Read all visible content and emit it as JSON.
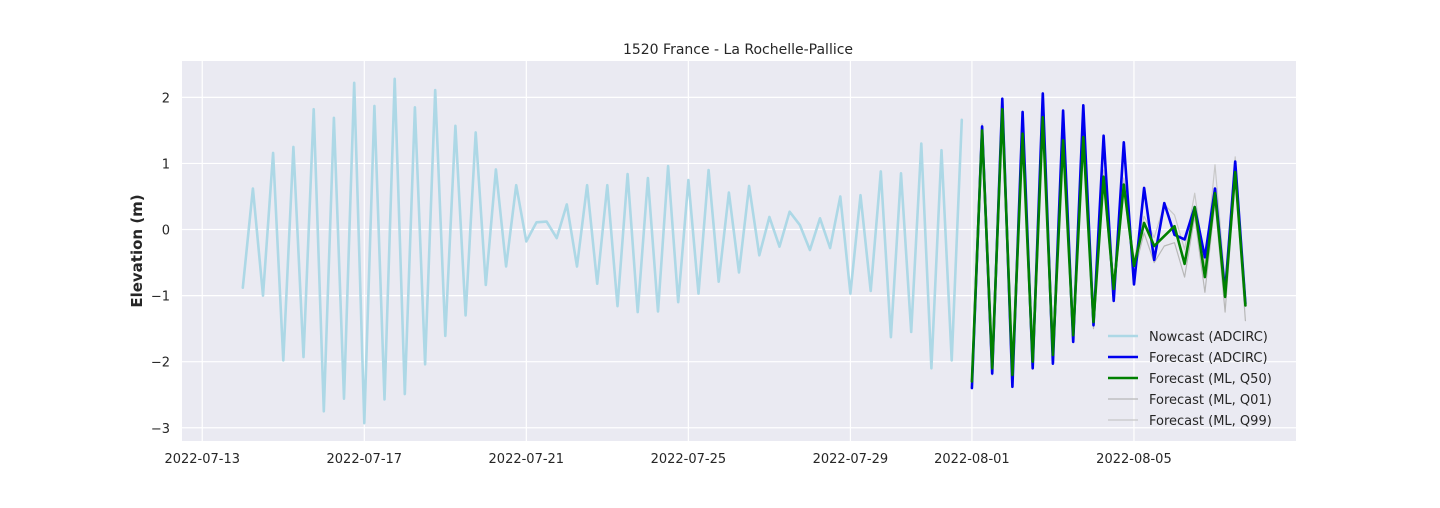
{
  "chart_data": {
    "type": "line",
    "title": "1520 France - La Rochelle-Pallice",
    "xlabel": "",
    "ylabel": "Elevation (m)",
    "xlim": [
      "2022-07-12T12:00",
      "2022-08-09T00:00"
    ],
    "ylim": [
      -3.2,
      2.55
    ],
    "x_ticks": [
      "2022-07-13",
      "2022-07-17",
      "2022-07-21",
      "2022-07-25",
      "2022-07-29",
      "2022-08-01",
      "2022-08-05"
    ],
    "y_ticks": [
      2,
      1,
      0,
      -1,
      -2,
      -3
    ],
    "y_tick_labels": [
      "2",
      "1",
      "0",
      "−1",
      "−2",
      "−3"
    ],
    "grid": true,
    "background_color": "#eaeaf2",
    "legend_placement": "lower-right",
    "series": [
      {
        "name": "Nowcast (ADCIRC)",
        "color": "#add8e6",
        "width": 2.6,
        "x": [
          "2022-07-14T00:00",
          "2022-07-14T06:00",
          "2022-07-14T12:00",
          "2022-07-14T18:00",
          "2022-07-15T00:00",
          "2022-07-15T06:00",
          "2022-07-15T12:00",
          "2022-07-15T18:00",
          "2022-07-16T00:00",
          "2022-07-16T06:00",
          "2022-07-16T12:00",
          "2022-07-16T18:00",
          "2022-07-17T00:00",
          "2022-07-17T06:00",
          "2022-07-17T12:00",
          "2022-07-17T18:00",
          "2022-07-18T00:00",
          "2022-07-18T06:00",
          "2022-07-18T12:00",
          "2022-07-18T18:00",
          "2022-07-19T00:00",
          "2022-07-19T06:00",
          "2022-07-19T12:00",
          "2022-07-19T18:00",
          "2022-07-20T00:00",
          "2022-07-20T06:00",
          "2022-07-20T12:00",
          "2022-07-20T18:00",
          "2022-07-21T00:00",
          "2022-07-21T06:00",
          "2022-07-21T12:00",
          "2022-07-21T18:00",
          "2022-07-22T00:00",
          "2022-07-22T06:00",
          "2022-07-22T12:00",
          "2022-07-22T18:00",
          "2022-07-23T00:00",
          "2022-07-23T06:00",
          "2022-07-23T12:00",
          "2022-07-23T18:00",
          "2022-07-24T00:00",
          "2022-07-24T06:00",
          "2022-07-24T12:00",
          "2022-07-24T18:00",
          "2022-07-25T00:00",
          "2022-07-25T06:00",
          "2022-07-25T12:00",
          "2022-07-25T18:00",
          "2022-07-26T00:00",
          "2022-07-26T06:00",
          "2022-07-26T12:00",
          "2022-07-26T18:00",
          "2022-07-27T00:00",
          "2022-07-27T06:00",
          "2022-07-27T12:00",
          "2022-07-27T18:00",
          "2022-07-28T00:00",
          "2022-07-28T06:00",
          "2022-07-28T12:00",
          "2022-07-28T18:00",
          "2022-07-29T00:00",
          "2022-07-29T06:00",
          "2022-07-29T12:00",
          "2022-07-29T18:00",
          "2022-07-30T00:00",
          "2022-07-30T06:00",
          "2022-07-30T12:00",
          "2022-07-30T18:00",
          "2022-07-31T00:00",
          "2022-07-31T06:00",
          "2022-07-31T12:00",
          "2022-07-31T18:00"
        ],
        "y": [
          -0.88,
          0.62,
          -1.0,
          1.16,
          -1.98,
          1.25,
          -1.93,
          1.82,
          -2.75,
          1.69,
          -2.56,
          2.22,
          -2.93,
          1.87,
          -2.57,
          2.28,
          -2.49,
          1.85,
          -2.04,
          2.11,
          -1.61,
          1.57,
          -1.3,
          1.47,
          -0.84,
          0.91,
          -0.56,
          0.67,
          -0.18,
          0.11,
          0.12,
          -0.13,
          0.38,
          -0.56,
          0.67,
          -0.82,
          0.67,
          -1.16,
          0.84,
          -1.25,
          0.78,
          -1.24,
          0.96,
          -1.1,
          0.75,
          -0.97,
          0.9,
          -0.79,
          0.56,
          -0.65,
          0.66,
          -0.39,
          0.19,
          -0.26,
          0.27,
          0.07,
          -0.31,
          0.17,
          -0.28,
          0.5,
          -0.97,
          0.52,
          -0.93,
          0.88,
          -1.63,
          0.85,
          -1.55,
          1.3,
          -2.1,
          1.2,
          -1.98,
          1.66
        ]
      },
      {
        "name": "Forecast (ADCIRC)",
        "color": "#0000ee",
        "width": 2.6,
        "x": [
          "2022-08-01T00:00",
          "2022-08-01T06:00",
          "2022-08-01T12:00",
          "2022-08-01T18:00",
          "2022-08-02T00:00",
          "2022-08-02T06:00",
          "2022-08-02T12:00",
          "2022-08-02T18:00",
          "2022-08-03T00:00",
          "2022-08-03T06:00",
          "2022-08-03T12:00",
          "2022-08-03T18:00",
          "2022-08-04T00:00",
          "2022-08-04T06:00",
          "2022-08-04T12:00",
          "2022-08-04T18:00",
          "2022-08-05T00:00",
          "2022-08-05T06:00",
          "2022-08-05T12:00",
          "2022-08-05T18:00",
          "2022-08-06T00:00",
          "2022-08-06T06:00",
          "2022-08-06T12:00",
          "2022-08-06T18:00",
          "2022-08-07T00:00",
          "2022-08-07T06:00",
          "2022-08-07T12:00",
          "2022-08-07T18:00"
        ],
        "y": [
          -2.4,
          1.56,
          -2.18,
          1.98,
          -2.38,
          1.78,
          -2.1,
          2.06,
          -2.03,
          1.8,
          -1.7,
          1.88,
          -1.45,
          1.42,
          -1.08,
          1.32,
          -0.83,
          0.63,
          -0.46,
          0.4,
          -0.08,
          -0.15,
          0.34,
          -0.42,
          0.62,
          -0.95,
          1.03,
          -1.12
        ]
      },
      {
        "name": "Forecast (ML, Q50)",
        "color": "#008000",
        "width": 2.6,
        "x": [
          "2022-08-01T00:00",
          "2022-08-01T06:00",
          "2022-08-01T12:00",
          "2022-08-01T18:00",
          "2022-08-02T00:00",
          "2022-08-02T06:00",
          "2022-08-02T12:00",
          "2022-08-02T18:00",
          "2022-08-03T00:00",
          "2022-08-03T06:00",
          "2022-08-03T12:00",
          "2022-08-03T18:00",
          "2022-08-04T00:00",
          "2022-08-04T06:00",
          "2022-08-04T12:00",
          "2022-08-04T18:00",
          "2022-08-05T00:00",
          "2022-08-05T06:00",
          "2022-08-05T12:00",
          "2022-08-05T18:00",
          "2022-08-06T00:00",
          "2022-08-06T06:00",
          "2022-08-06T12:00",
          "2022-08-06T18:00",
          "2022-08-07T00:00",
          "2022-08-07T06:00",
          "2022-08-07T12:00",
          "2022-08-07T18:00"
        ],
        "y": [
          -2.3,
          1.5,
          -2.1,
          1.82,
          -2.2,
          1.45,
          -2.0,
          1.7,
          -1.9,
          1.35,
          -1.6,
          1.4,
          -1.4,
          0.8,
          -0.9,
          0.68,
          -0.55,
          0.1,
          -0.25,
          -0.1,
          0.05,
          -0.52,
          0.34,
          -0.72,
          0.55,
          -1.02,
          0.87,
          -1.15
        ]
      },
      {
        "name": "Forecast (ML, Q01)",
        "color": "#b8b8b8",
        "width": 1.2,
        "x": [
          "2022-08-01T00:00",
          "2022-08-01T06:00",
          "2022-08-01T12:00",
          "2022-08-01T18:00",
          "2022-08-02T00:00",
          "2022-08-02T06:00",
          "2022-08-02T12:00",
          "2022-08-02T18:00",
          "2022-08-03T00:00",
          "2022-08-03T06:00",
          "2022-08-03T12:00",
          "2022-08-03T18:00",
          "2022-08-04T00:00",
          "2022-08-04T06:00",
          "2022-08-04T12:00",
          "2022-08-04T18:00",
          "2022-08-05T00:00",
          "2022-08-05T06:00",
          "2022-08-05T12:00",
          "2022-08-05T18:00",
          "2022-08-06T00:00",
          "2022-08-06T06:00",
          "2022-08-06T12:00",
          "2022-08-06T18:00",
          "2022-08-07T00:00",
          "2022-08-07T06:00",
          "2022-08-07T12:00",
          "2022-08-07T18:00"
        ],
        "y": [
          -2.35,
          1.42,
          -2.2,
          1.7,
          -2.3,
          1.38,
          -2.08,
          1.6,
          -1.98,
          1.25,
          -1.68,
          1.3,
          -1.5,
          0.7,
          -1.0,
          0.6,
          -0.65,
          -0.05,
          -0.5,
          -0.25,
          -0.2,
          -0.72,
          0.2,
          -0.95,
          0.42,
          -1.25,
          0.78,
          -1.38
        ]
      },
      {
        "name": "Forecast (ML, Q99)",
        "color": "#c8c8c8",
        "width": 1.2,
        "x": [
          "2022-08-01T00:00",
          "2022-08-01T06:00",
          "2022-08-01T12:00",
          "2022-08-01T18:00",
          "2022-08-02T00:00",
          "2022-08-02T06:00",
          "2022-08-02T12:00",
          "2022-08-02T18:00",
          "2022-08-03T00:00",
          "2022-08-03T06:00",
          "2022-08-03T12:00",
          "2022-08-03T18:00",
          "2022-08-04T00:00",
          "2022-08-04T06:00",
          "2022-08-04T12:00",
          "2022-08-04T18:00",
          "2022-08-05T00:00",
          "2022-08-05T06:00",
          "2022-08-05T12:00",
          "2022-08-05T18:00",
          "2022-08-06T00:00",
          "2022-08-06T06:00",
          "2022-08-06T12:00",
          "2022-08-06T18:00",
          "2022-08-07T00:00",
          "2022-08-07T06:00",
          "2022-08-07T12:00",
          "2022-08-07T18:00"
        ],
        "y": [
          -2.2,
          1.6,
          -2.0,
          1.9,
          -2.1,
          1.55,
          -1.9,
          1.8,
          -1.8,
          1.45,
          -1.5,
          1.5,
          -1.3,
          0.9,
          -0.8,
          0.78,
          -0.45,
          0.2,
          -0.12,
          0.38,
          0.22,
          -0.3,
          0.55,
          -0.55,
          0.98,
          -0.8,
          1.1,
          -1.0
        ]
      }
    ]
  }
}
